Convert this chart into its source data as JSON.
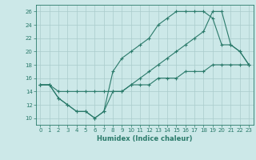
{
  "xlabel": "Humidex (Indice chaleur)",
  "bg_color": "#cce8e8",
  "grid_color": "#aacccc",
  "line_color": "#2a7a6a",
  "xlim": [
    -0.5,
    23.5
  ],
  "ylim": [
    9,
    27
  ],
  "xticks": [
    0,
    1,
    2,
    3,
    4,
    5,
    6,
    7,
    8,
    9,
    10,
    11,
    12,
    13,
    14,
    15,
    16,
    17,
    18,
    19,
    20,
    21,
    22,
    23
  ],
  "yticks": [
    10,
    12,
    14,
    16,
    18,
    20,
    22,
    24,
    26
  ],
  "line1_x": [
    0,
    1,
    2,
    3,
    4,
    5,
    6,
    7,
    8,
    9,
    10,
    11,
    12,
    13,
    14,
    15,
    16,
    17,
    18,
    19,
    20,
    21,
    22,
    23
  ],
  "line1_y": [
    15,
    15,
    13,
    12,
    11,
    11,
    10,
    11,
    14,
    14,
    15,
    16,
    17,
    18,
    19,
    20,
    21,
    22,
    23,
    26,
    26,
    21,
    20,
    18
  ],
  "line2_x": [
    0,
    1,
    2,
    3,
    4,
    5,
    6,
    7,
    8,
    9,
    10,
    11,
    12,
    13,
    14,
    15,
    16,
    17,
    18,
    19,
    20,
    21,
    22,
    23
  ],
  "line2_y": [
    15,
    15,
    14,
    14,
    14,
    14,
    14,
    14,
    14,
    14,
    15,
    15,
    15,
    16,
    16,
    16,
    17,
    17,
    17,
    18,
    18,
    18,
    18,
    18
  ],
  "line3_x": [
    0,
    1,
    2,
    3,
    4,
    5,
    6,
    7,
    8,
    9,
    10,
    11,
    12,
    13,
    14,
    15,
    16,
    17,
    18,
    19,
    20,
    21,
    22,
    23
  ],
  "line3_y": [
    15,
    15,
    13,
    12,
    11,
    11,
    10,
    11,
    17,
    19,
    20,
    21,
    22,
    24,
    25,
    26,
    26,
    26,
    26,
    25,
    21,
    21,
    20,
    18
  ]
}
